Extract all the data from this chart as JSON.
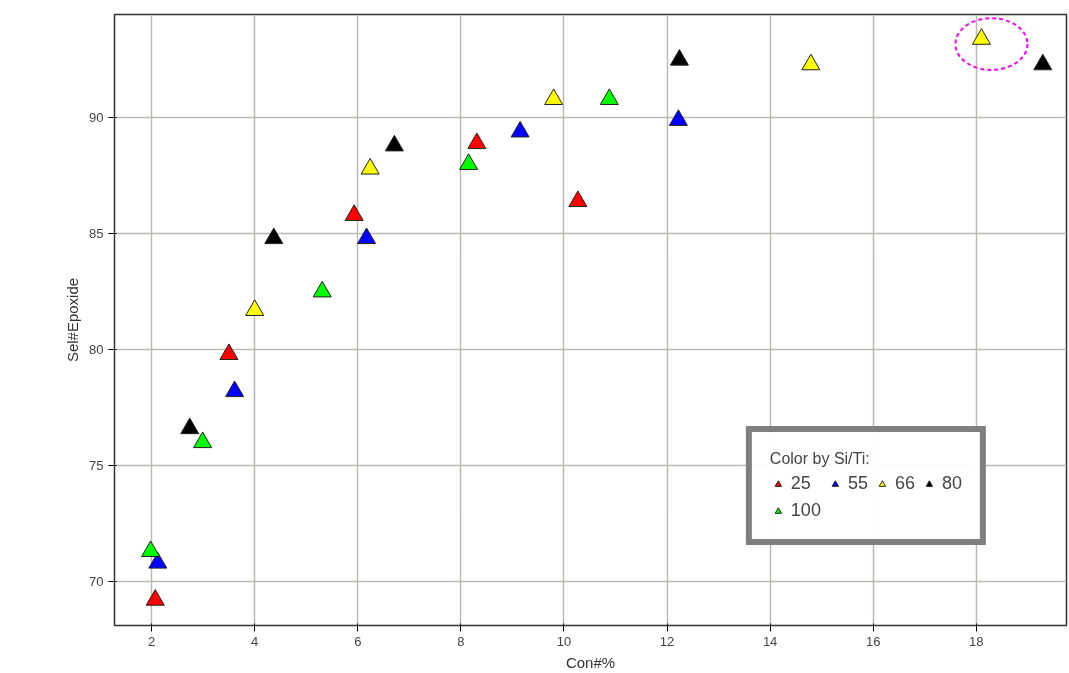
{
  "chart_data": {
    "type": "scatter",
    "xlabel": "Con#%",
    "ylabel": "Sel#Epoxide",
    "legend_title": "Color by Si/Ti:",
    "xlim": [
      1.28,
      19.75
    ],
    "ylim": [
      68.1,
      94.46
    ],
    "xticks": [
      2,
      4,
      6,
      8,
      10,
      12,
      14,
      16,
      18
    ],
    "yticks": [
      70,
      75,
      80,
      85,
      90
    ],
    "grid": true,
    "legend": "bottom right",
    "marker": "triangle",
    "series": [
      {
        "name": "25",
        "color": "#ff0000",
        "x": [
          2.07,
          3.5,
          5.93,
          8.31,
          10.27
        ],
        "values": [
          69.2,
          79.8,
          85.8,
          88.9,
          86.4
        ]
      },
      {
        "name": "55",
        "color": "#0000ff",
        "x": [
          2.12,
          3.61,
          6.17,
          9.15,
          12.22
        ],
        "values": [
          70.8,
          78.2,
          84.8,
          89.4,
          89.9
        ]
      },
      {
        "name": "66",
        "color": "#ffff00",
        "x": [
          4.0,
          6.24,
          9.8,
          14.79,
          18.1
        ],
        "values": [
          81.7,
          87.8,
          90.8,
          92.3,
          93.4
        ]
      },
      {
        "name": "80",
        "color": "#000000",
        "x": [
          2.74,
          4.37,
          6.71,
          12.24,
          19.29
        ],
        "values": [
          76.6,
          84.8,
          88.8,
          92.5,
          92.3
        ]
      },
      {
        "name": "100",
        "color": "#00ff00",
        "x": [
          1.98,
          2.99,
          5.31,
          8.15,
          10.88
        ],
        "values": [
          71.3,
          76.0,
          82.5,
          88.0,
          90.8
        ]
      }
    ]
  }
}
